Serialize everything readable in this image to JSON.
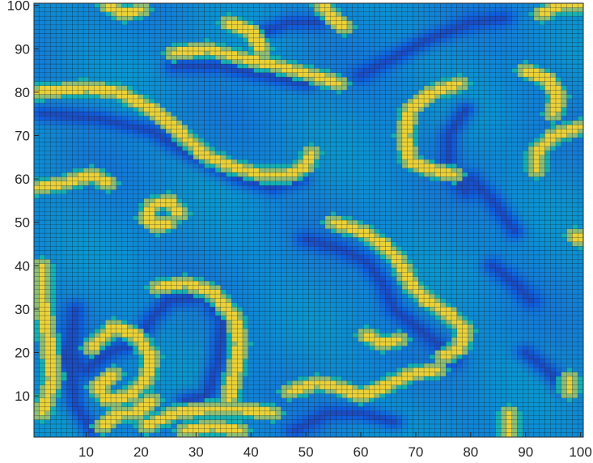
{
  "chart_data": {
    "type": "heatmap",
    "title": "",
    "xlabel": "",
    "ylabel": "",
    "xlim": [
      1,
      100
    ],
    "ylim": [
      1,
      100
    ],
    "x_ticks": [
      10,
      20,
      30,
      40,
      50,
      60,
      70,
      80,
      90,
      100
    ],
    "y_ticks": [
      10,
      20,
      30,
      40,
      50,
      60,
      70,
      80,
      90,
      100
    ],
    "x_tick_labels": [
      "10",
      "20",
      "30",
      "40",
      "50",
      "60",
      "70",
      "80",
      "90",
      "100"
    ],
    "y_tick_labels": [
      "10",
      "20",
      "30",
      "40",
      "50",
      "60",
      "70",
      "80",
      "90",
      "100"
    ],
    "grid_size": [
      100,
      100
    ],
    "colormap": "parula",
    "cell_edge_color": "#000000",
    "value_range": [
      0,
      1
    ],
    "background_value": 0.35,
    "features": [
      {
        "kind": "band",
        "value": 0.95,
        "points": [
          [
            1,
            80
          ],
          [
            10,
            81
          ],
          [
            16,
            80
          ],
          [
            22,
            76
          ],
          [
            27,
            71
          ],
          [
            31,
            66
          ],
          [
            36,
            63
          ],
          [
            42,
            61
          ],
          [
            47,
            61
          ],
          [
            50,
            63
          ],
          [
            51,
            66
          ]
        ]
      },
      {
        "kind": "band",
        "value": 0.95,
        "points": [
          [
            26,
            89
          ],
          [
            32,
            90
          ],
          [
            38,
            88
          ],
          [
            45,
            86
          ],
          [
            51,
            84
          ],
          [
            56,
            82
          ]
        ]
      },
      {
        "kind": "band",
        "value": 0.95,
        "points": [
          [
            1,
            58
          ],
          [
            6,
            59
          ],
          [
            11,
            61
          ],
          [
            14,
            59
          ]
        ]
      },
      {
        "kind": "band",
        "value": 0.95,
        "points": [
          [
            25,
            50
          ],
          [
            23,
            49
          ],
          [
            21,
            51
          ],
          [
            22,
            54
          ],
          [
            25,
            55
          ],
          [
            27,
            52
          ]
        ]
      },
      {
        "kind": "band",
        "value": 0.95,
        "points": [
          [
            23,
            35
          ],
          [
            28,
            36
          ],
          [
            33,
            34
          ],
          [
            37,
            28
          ],
          [
            38,
            22
          ],
          [
            37,
            15
          ],
          [
            36,
            9
          ]
        ]
      },
      {
        "kind": "band",
        "value": 0.95,
        "points": [
          [
            11,
            21
          ],
          [
            15,
            26
          ],
          [
            19,
            24
          ],
          [
            22,
            19
          ],
          [
            21,
            14
          ],
          [
            18,
            10
          ],
          [
            14,
            9
          ],
          [
            12,
            12
          ],
          [
            15,
            15
          ]
        ]
      },
      {
        "kind": "band",
        "value": 0.95,
        "points": [
          [
            13,
            3
          ],
          [
            16,
            6
          ],
          [
            19,
            6
          ],
          [
            22,
            9
          ]
        ]
      },
      {
        "kind": "band",
        "value": 0.95,
        "points": [
          [
            21,
            3
          ],
          [
            26,
            6
          ],
          [
            32,
            7
          ],
          [
            38,
            7
          ],
          [
            44,
            6
          ]
        ]
      },
      {
        "kind": "band",
        "value": 0.95,
        "points": [
          [
            28,
            2
          ],
          [
            33,
            3
          ],
          [
            38,
            2
          ]
        ]
      },
      {
        "kind": "band",
        "value": 0.95,
        "points": [
          [
            55,
            50
          ],
          [
            60,
            48
          ],
          [
            64,
            45
          ],
          [
            67,
            41
          ],
          [
            69,
            36
          ],
          [
            72,
            32
          ],
          [
            76,
            29
          ],
          [
            79,
            25
          ],
          [
            78,
            21
          ],
          [
            75,
            19
          ]
        ]
      },
      {
        "kind": "band",
        "value": 0.95,
        "points": [
          [
            61,
            24
          ],
          [
            64,
            22
          ],
          [
            67,
            23
          ]
        ]
      },
      {
        "kind": "band",
        "value": 0.95,
        "points": [
          [
            47,
            11
          ],
          [
            52,
            13
          ],
          [
            56,
            12
          ],
          [
            60,
            10
          ],
          [
            64,
            12
          ],
          [
            69,
            15
          ],
          [
            74,
            16
          ]
        ]
      },
      {
        "kind": "band",
        "value": 0.95,
        "points": [
          [
            78,
            82
          ],
          [
            73,
            80
          ],
          [
            69,
            76
          ],
          [
            68,
            70
          ],
          [
            69,
            64
          ],
          [
            73,
            62
          ],
          [
            77,
            61
          ]
        ]
      },
      {
        "kind": "band",
        "value": 0.95,
        "points": [
          [
            90,
            85
          ],
          [
            94,
            83
          ],
          [
            96,
            79
          ],
          [
            95,
            75
          ]
        ]
      },
      {
        "kind": "band",
        "value": 0.95,
        "points": [
          [
            100,
            72
          ],
          [
            95,
            70
          ],
          [
            92,
            66
          ],
          [
            92,
            62
          ]
        ]
      },
      {
        "kind": "band",
        "value": 0.95,
        "points": [
          [
            93,
            98
          ],
          [
            96,
            100
          ],
          [
            100,
            100
          ]
        ]
      },
      {
        "kind": "band",
        "value": 0.95,
        "points": [
          [
            14,
            100
          ],
          [
            17,
            98
          ],
          [
            20,
            99
          ]
        ]
      },
      {
        "kind": "band",
        "value": 0.95,
        "points": [
          [
            36,
            96
          ],
          [
            40,
            94
          ],
          [
            42,
            90
          ]
        ]
      },
      {
        "kind": "band",
        "value": 0.95,
        "points": [
          [
            53,
            100
          ],
          [
            55,
            97
          ],
          [
            57,
            95
          ]
        ]
      },
      {
        "kind": "band",
        "value": 0.95,
        "points": [
          [
            2,
            40
          ],
          [
            2,
            32
          ],
          [
            3,
            24
          ],
          [
            4,
            14
          ],
          [
            2,
            6
          ]
        ]
      },
      {
        "kind": "band",
        "value": 0.95,
        "points": [
          [
            98,
            14
          ],
          [
            98,
            11
          ]
        ]
      },
      {
        "kind": "band",
        "value": 0.95,
        "points": [
          [
            87,
            1
          ],
          [
            87,
            6
          ]
        ]
      },
      {
        "kind": "band",
        "value": 0.95,
        "points": [
          [
            99,
            47
          ],
          [
            100,
            46
          ]
        ]
      },
      {
        "kind": "dark",
        "value": 0.1,
        "points": [
          [
            2,
            75
          ],
          [
            12,
            74
          ],
          [
            22,
            71
          ],
          [
            30,
            65
          ],
          [
            38,
            60
          ],
          [
            44,
            58
          ],
          [
            49,
            60
          ]
        ]
      },
      {
        "kind": "dark",
        "value": 0.1,
        "points": [
          [
            5,
            20
          ],
          [
            10,
            16
          ],
          [
            14,
            20
          ],
          [
            19,
            22
          ],
          [
            22,
            28
          ],
          [
            25,
            32
          ],
          [
            32,
            33
          ],
          [
            35,
            27
          ],
          [
            34,
            18
          ],
          [
            32,
            10
          ],
          [
            28,
            9
          ]
        ]
      },
      {
        "kind": "dark",
        "value": 0.1,
        "points": [
          [
            8,
            30
          ],
          [
            7,
            18
          ],
          [
            8,
            8
          ],
          [
            11,
            2
          ]
        ]
      },
      {
        "kind": "dark",
        "value": 0.1,
        "points": [
          [
            50,
            46
          ],
          [
            56,
            44
          ],
          [
            61,
            41
          ],
          [
            64,
            36
          ],
          [
            66,
            30
          ],
          [
            70,
            26
          ],
          [
            74,
            22
          ],
          [
            77,
            18
          ]
        ]
      },
      {
        "kind": "dark",
        "value": 0.1,
        "points": [
          [
            60,
            84
          ],
          [
            66,
            88
          ],
          [
            72,
            92
          ],
          [
            80,
            96
          ],
          [
            86,
            97
          ]
        ]
      },
      {
        "kind": "dark",
        "value": 0.1,
        "points": [
          [
            79,
            76
          ],
          [
            76,
            70
          ],
          [
            76,
            62
          ],
          [
            79,
            57
          ]
        ]
      },
      {
        "kind": "dark",
        "value": 0.1,
        "points": [
          [
            84,
            40
          ],
          [
            88,
            36
          ],
          [
            91,
            32
          ]
        ]
      },
      {
        "kind": "dark",
        "value": 0.1,
        "points": [
          [
            80,
            60
          ],
          [
            84,
            55
          ],
          [
            88,
            48
          ]
        ]
      },
      {
        "kind": "dark",
        "value": 0.1,
        "points": [
          [
            42,
            94
          ],
          [
            47,
            96
          ],
          [
            52,
            96
          ]
        ]
      },
      {
        "kind": "dark",
        "value": 0.1,
        "points": [
          [
            90,
            20
          ],
          [
            94,
            16
          ],
          [
            97,
            12
          ]
        ]
      },
      {
        "kind": "dark",
        "value": 0.1,
        "points": [
          [
            48,
            2
          ],
          [
            54,
            6
          ],
          [
            60,
            6
          ],
          [
            66,
            4
          ]
        ]
      },
      {
        "kind": "dark",
        "value": 0.1,
        "points": [
          [
            26,
            86
          ],
          [
            34,
            86
          ],
          [
            42,
            84
          ],
          [
            50,
            82
          ]
        ]
      }
    ]
  }
}
